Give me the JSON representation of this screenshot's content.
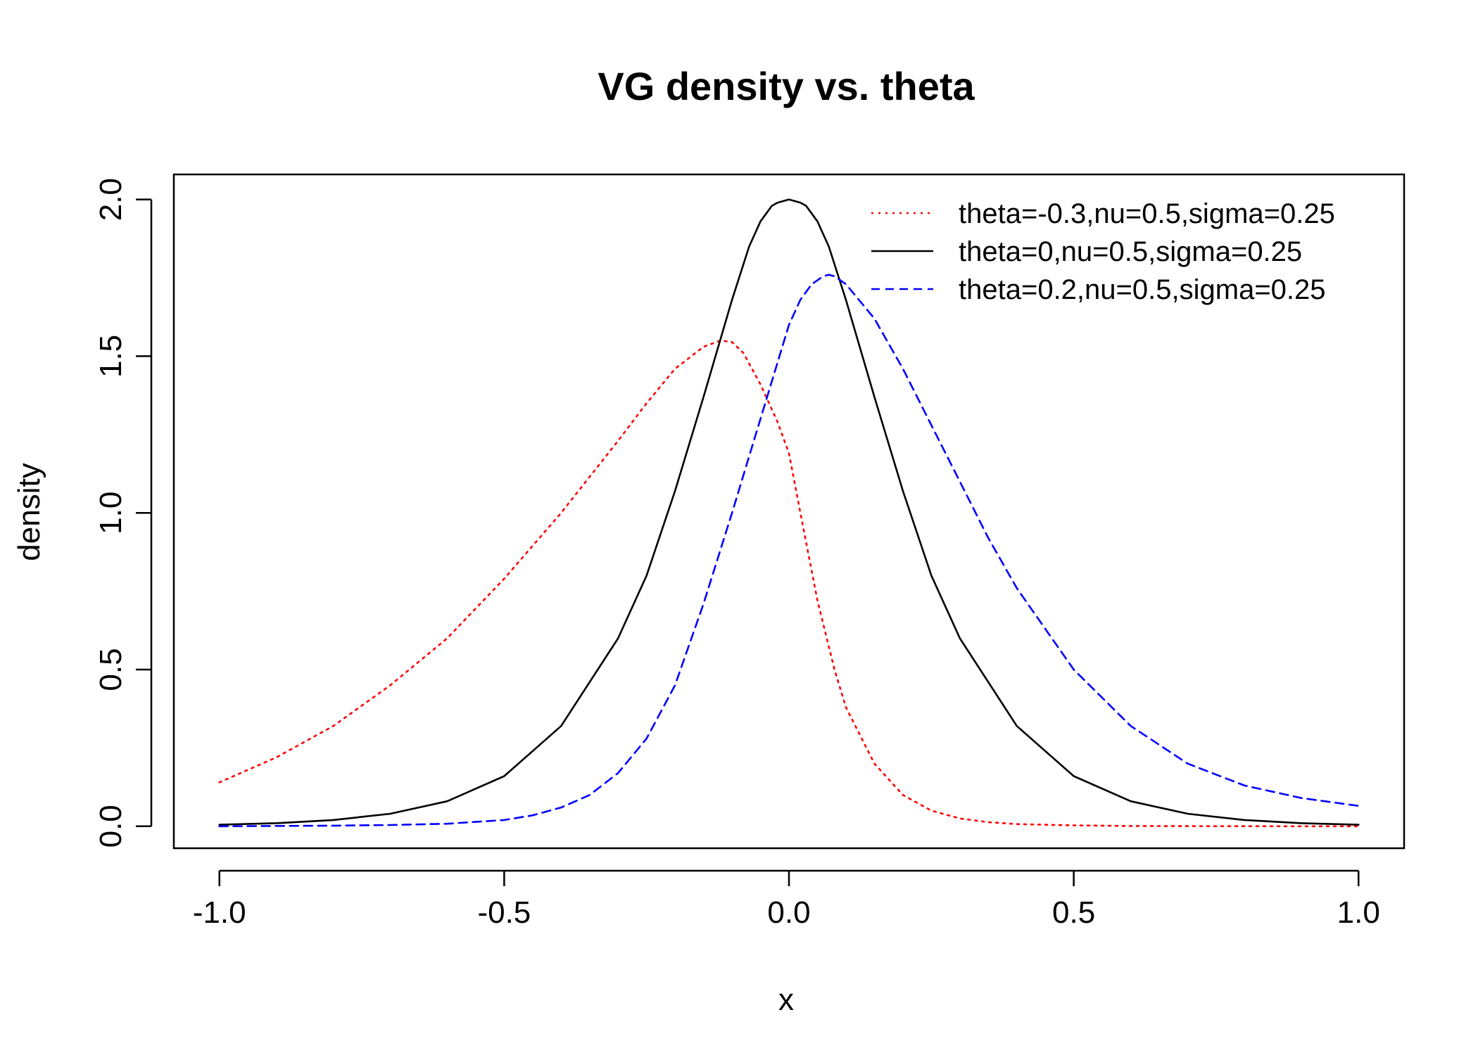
{
  "chart_data": {
    "type": "line",
    "title": "VG density vs. theta",
    "xlabel": "x",
    "ylabel": "density",
    "xlim": [
      -1.08,
      1.08
    ],
    "ylim": [
      -0.07,
      2.08
    ],
    "x_ticks": [
      -1.0,
      -0.5,
      0.0,
      0.5,
      1.0
    ],
    "x_tick_labels": [
      "-1.0",
      "-0.5",
      "0.0",
      "0.5",
      "1.0"
    ],
    "y_ticks": [
      0.0,
      0.5,
      1.0,
      1.5,
      2.0
    ],
    "y_tick_labels": [
      "0.0",
      "0.5",
      "1.0",
      "1.5",
      "2.0"
    ],
    "grid": false,
    "legend_position": "top-right",
    "series": [
      {
        "name": "theta=-0.3,nu=0.5,sigma=0.25",
        "color": "#ff0000",
        "dash": "dotted",
        "x": [
          -1.0,
          -0.9,
          -0.8,
          -0.7,
          -0.6,
          -0.5,
          -0.4,
          -0.3,
          -0.25,
          -0.2,
          -0.15,
          -0.12,
          -0.1,
          -0.08,
          -0.05,
          -0.02,
          0.0,
          0.02,
          0.05,
          0.08,
          0.1,
          0.15,
          0.2,
          0.25,
          0.3,
          0.35,
          0.4,
          0.5,
          0.6,
          0.7,
          0.8,
          0.9,
          1.0
        ],
        "y": [
          0.14,
          0.22,
          0.32,
          0.45,
          0.6,
          0.79,
          1.0,
          1.23,
          1.35,
          1.46,
          1.53,
          1.55,
          1.545,
          1.51,
          1.41,
          1.29,
          1.19,
          1.0,
          0.72,
          0.5,
          0.38,
          0.2,
          0.1,
          0.05,
          0.025,
          0.013,
          0.007,
          0.003,
          0.001,
          0.0005,
          0.0002,
          0.0001,
          0.0001
        ]
      },
      {
        "name": "theta=0,nu=0.5,sigma=0.25",
        "color": "#000000",
        "dash": "solid",
        "x": [
          -1.0,
          -0.9,
          -0.8,
          -0.7,
          -0.6,
          -0.5,
          -0.4,
          -0.3,
          -0.25,
          -0.2,
          -0.15,
          -0.1,
          -0.07,
          -0.05,
          -0.03,
          -0.02,
          0.0,
          0.02,
          0.03,
          0.05,
          0.07,
          0.1,
          0.15,
          0.2,
          0.25,
          0.3,
          0.4,
          0.5,
          0.6,
          0.7,
          0.8,
          0.9,
          1.0
        ],
        "y": [
          0.005,
          0.01,
          0.02,
          0.04,
          0.08,
          0.16,
          0.32,
          0.6,
          0.8,
          1.07,
          1.37,
          1.68,
          1.85,
          1.93,
          1.98,
          1.99,
          2.0,
          1.99,
          1.98,
          1.93,
          1.85,
          1.68,
          1.37,
          1.07,
          0.8,
          0.6,
          0.32,
          0.16,
          0.08,
          0.04,
          0.02,
          0.01,
          0.005
        ]
      },
      {
        "name": "theta=0.2,nu=0.5,sigma=0.25",
        "color": "#0000ff",
        "dash": "dashed",
        "x": [
          -1.0,
          -0.8,
          -0.7,
          -0.6,
          -0.5,
          -0.45,
          -0.4,
          -0.35,
          -0.3,
          -0.25,
          -0.2,
          -0.15,
          -0.1,
          -0.05,
          -0.02,
          0.0,
          0.02,
          0.04,
          0.06,
          0.07,
          0.08,
          0.1,
          0.15,
          0.2,
          0.25,
          0.3,
          0.35,
          0.4,
          0.5,
          0.6,
          0.7,
          0.8,
          0.9,
          1.0
        ],
        "y": [
          0.0,
          0.002,
          0.004,
          0.008,
          0.02,
          0.035,
          0.06,
          0.1,
          0.17,
          0.28,
          0.45,
          0.71,
          1.0,
          1.3,
          1.48,
          1.6,
          1.68,
          1.73,
          1.755,
          1.76,
          1.755,
          1.73,
          1.62,
          1.46,
          1.28,
          1.1,
          0.92,
          0.76,
          0.5,
          0.32,
          0.2,
          0.13,
          0.09,
          0.065
        ]
      }
    ]
  }
}
